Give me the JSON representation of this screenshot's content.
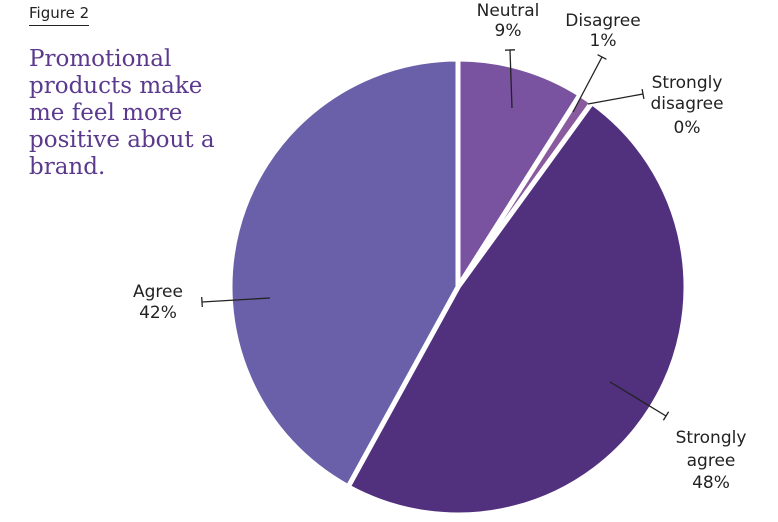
{
  "figure_label": "Figure 2",
  "chart_data": {
    "type": "pie",
    "title": "Promotional products make me feel more positive about a brand.",
    "slices": [
      {
        "name": "Neutral",
        "value": 9,
        "label": "9%",
        "color": "#7952a0"
      },
      {
        "name": "Disagree",
        "value": 1,
        "label": "1%",
        "color": "#8a5a9e"
      },
      {
        "name": "Strongly disagree",
        "value": 0,
        "label": "0%",
        "color": "#4a6a8a"
      },
      {
        "name": "Strongly agree",
        "value": 48,
        "label": "48%",
        "color": "#51307e"
      },
      {
        "name": "Agree",
        "value": 42,
        "label": "42%",
        "color": "#6a60a9"
      }
    ],
    "start": "12 o'clock, clockwise"
  }
}
